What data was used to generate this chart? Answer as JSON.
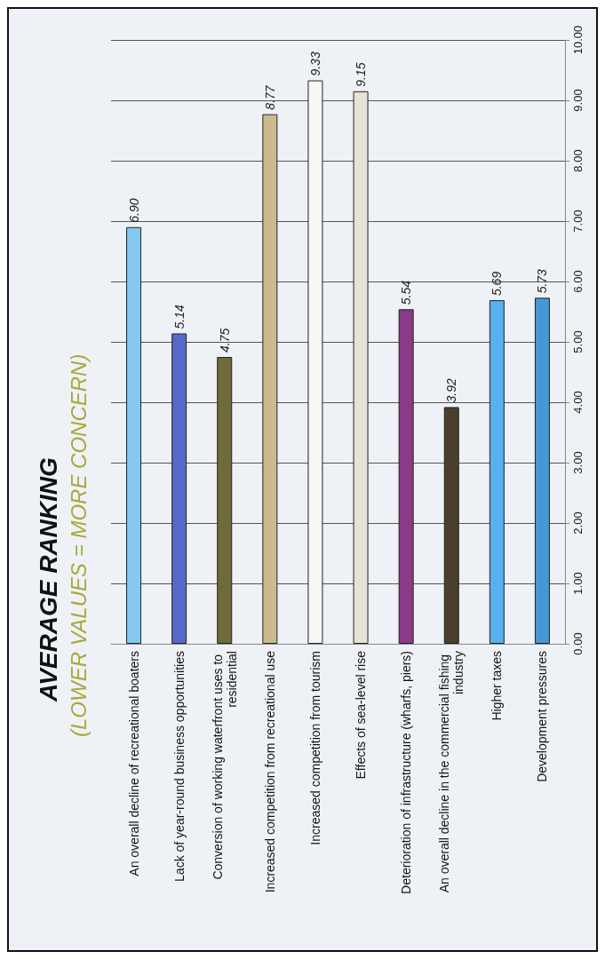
{
  "chart_data": {
    "type": "bar",
    "title": "AVERAGE RANKING",
    "subtitle": "(LOWER VALUES = MORE CONCERN)",
    "categories": [
      "An overall decline of recreational boaters",
      "Lack of year-round business opportunities",
      "Conversion of working waterfront uses to residential",
      "Increased competition from recreational use",
      "Increased competition from tourism",
      "Effects of sea-level rise",
      "Deterioration of infrastructure (wharfs, piers)",
      "An overall decline in the commercial fishing industry",
      "Higher taxes",
      "Development pressures"
    ],
    "values": [
      6.9,
      5.14,
      4.75,
      8.77,
      9.33,
      9.15,
      5.54,
      3.92,
      5.69,
      5.73
    ],
    "value_labels": [
      "6.90",
      "5.14",
      "4.75",
      "8.77",
      "9.33",
      "9.15",
      "5.54",
      "3.92",
      "5.69",
      "5.73"
    ],
    "colors": [
      "#86c8f0",
      "#5868c8",
      "#6e6a3a",
      "#cbbb8c",
      "#f6f6f2",
      "#e6e2d6",
      "#8a3a88",
      "#4a3e2c",
      "#58b0f0",
      "#4896d4"
    ],
    "ylim": [
      0,
      10
    ],
    "yticks": [
      {
        "value": 0,
        "label": "0.00"
      },
      {
        "value": 1,
        "label": "1.00"
      },
      {
        "value": 2,
        "label": "2.00"
      },
      {
        "value": 3,
        "label": "3.00"
      },
      {
        "value": 4,
        "label": "4.00"
      },
      {
        "value": 5,
        "label": "5.00"
      },
      {
        "value": 6,
        "label": "6.00"
      },
      {
        "value": 7,
        "label": "7.00"
      },
      {
        "value": 8,
        "label": "8.00"
      },
      {
        "value": 9,
        "label": "9.00"
      },
      {
        "value": 10,
        "label": "10.00"
      }
    ],
    "grid": "y"
  }
}
